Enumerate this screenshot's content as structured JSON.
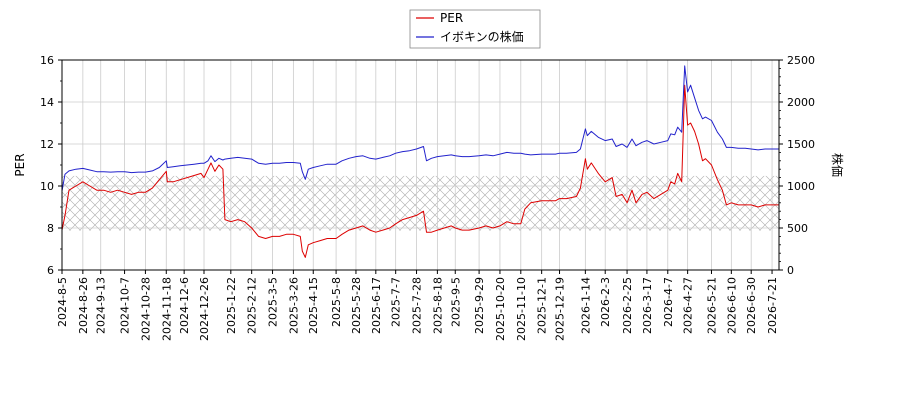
{
  "chart_data": {
    "type": "line",
    "title": "",
    "legend_position": "top-center",
    "left_axis": {
      "label": "PER",
      "range": [
        6,
        16
      ],
      "ticks": [
        "6",
        "8",
        "10",
        "12",
        "14",
        "16"
      ]
    },
    "right_axis": {
      "label": "株価",
      "range": [
        0,
        2500
      ],
      "ticks": [
        "0",
        "500",
        "1000",
        "1500",
        "2000",
        "2500"
      ]
    },
    "x_start": "2024-08-05",
    "x_end": "2026-07-28",
    "x_tick_labels": [
      "2024-8-5",
      "2024-8-26",
      "2024-9-13",
      "2024-10-7",
      "2024-10-28",
      "2024-11-18",
      "2024-12-6",
      "2024-12-26",
      "2025-1-22",
      "2025-2-12",
      "2025-3-5",
      "2025-3-26",
      "2025-4-15",
      "2025-5-8",
      "2025-5-28",
      "2025-6-17",
      "2025-7-7",
      "2025-7-28",
      "2025-8-18",
      "2025-9-5",
      "2025-9-29",
      "2025-10-20",
      "2025-11-10",
      "2025-12-1",
      "2025-12-19",
      "2026-1-14",
      "2026-2-3",
      "2026-2-25",
      "2026-3-17",
      "2026-4-7",
      "2026-4-27",
      "2026-5-21",
      "2026-6-10",
      "2026-6-30",
      "2026-7-21"
    ],
    "hatched_band": {
      "axis": "right",
      "from": 470,
      "to": 1120
    },
    "grid": true,
    "series": [
      {
        "name": "PER",
        "axis": "left",
        "color": "#dd0000",
        "points": [
          [
            "2024-08-05",
            7.9
          ],
          [
            "2024-08-08",
            8.6
          ],
          [
            "2024-08-12",
            9.8
          ],
          [
            "2024-08-19",
            10.0
          ],
          [
            "2024-08-26",
            10.2
          ],
          [
            "2024-09-02",
            10.0
          ],
          [
            "2024-09-09",
            9.8
          ],
          [
            "2024-09-16",
            9.8
          ],
          [
            "2024-09-23",
            9.7
          ],
          [
            "2024-09-30",
            9.8
          ],
          [
            "2024-10-07",
            9.7
          ],
          [
            "2024-10-14",
            9.6
          ],
          [
            "2024-10-21",
            9.7
          ],
          [
            "2024-10-28",
            9.7
          ],
          [
            "2024-11-04",
            9.9
          ],
          [
            "2024-11-11",
            10.3
          ],
          [
            "2024-11-18",
            10.7
          ],
          [
            "2024-11-19",
            10.2
          ],
          [
            "2024-11-25",
            10.2
          ],
          [
            "2024-12-02",
            10.3
          ],
          [
            "2024-12-09",
            10.4
          ],
          [
            "2024-12-16",
            10.5
          ],
          [
            "2024-12-23",
            10.6
          ],
          [
            "2024-12-26",
            10.4
          ],
          [
            "2024-12-30",
            10.8
          ],
          [
            "2025-01-02",
            11.1
          ],
          [
            "2025-01-06",
            10.7
          ],
          [
            "2025-01-10",
            11.0
          ],
          [
            "2025-01-14",
            10.8
          ],
          [
            "2025-01-16",
            8.4
          ],
          [
            "2025-01-22",
            8.3
          ],
          [
            "2025-01-29",
            8.4
          ],
          [
            "2025-02-05",
            8.3
          ],
          [
            "2025-02-12",
            8.0
          ],
          [
            "2025-02-19",
            7.6
          ],
          [
            "2025-02-26",
            7.5
          ],
          [
            "2025-03-05",
            7.6
          ],
          [
            "2025-03-12",
            7.6
          ],
          [
            "2025-03-19",
            7.7
          ],
          [
            "2025-03-26",
            7.7
          ],
          [
            "2025-04-02",
            7.6
          ],
          [
            "2025-04-04",
            6.9
          ],
          [
            "2025-04-07",
            6.6
          ],
          [
            "2025-04-10",
            7.2
          ],
          [
            "2025-04-15",
            7.3
          ],
          [
            "2025-04-22",
            7.4
          ],
          [
            "2025-04-29",
            7.5
          ],
          [
            "2025-05-08",
            7.5
          ],
          [
            "2025-05-14",
            7.7
          ],
          [
            "2025-05-21",
            7.9
          ],
          [
            "2025-05-28",
            8.0
          ],
          [
            "2025-06-04",
            8.1
          ],
          [
            "2025-06-11",
            7.9
          ],
          [
            "2025-06-17",
            7.8
          ],
          [
            "2025-06-24",
            7.9
          ],
          [
            "2025-07-01",
            8.0
          ],
          [
            "2025-07-07",
            8.2
          ],
          [
            "2025-07-14",
            8.4
          ],
          [
            "2025-07-21",
            8.5
          ],
          [
            "2025-07-28",
            8.6
          ],
          [
            "2025-08-04",
            8.8
          ],
          [
            "2025-08-07",
            7.8
          ],
          [
            "2025-08-12",
            7.8
          ],
          [
            "2025-08-18",
            7.9
          ],
          [
            "2025-08-25",
            8.0
          ],
          [
            "2025-09-01",
            8.1
          ],
          [
            "2025-09-05",
            8.0
          ],
          [
            "2025-09-12",
            7.9
          ],
          [
            "2025-09-19",
            7.9
          ],
          [
            "2025-09-29",
            8.0
          ],
          [
            "2025-10-06",
            8.1
          ],
          [
            "2025-10-13",
            8.0
          ],
          [
            "2025-10-20",
            8.1
          ],
          [
            "2025-10-27",
            8.3
          ],
          [
            "2025-11-03",
            8.2
          ],
          [
            "2025-11-10",
            8.2
          ],
          [
            "2025-11-14",
            8.9
          ],
          [
            "2025-11-20",
            9.2
          ],
          [
            "2025-12-01",
            9.3
          ],
          [
            "2025-12-08",
            9.3
          ],
          [
            "2025-12-15",
            9.3
          ],
          [
            "2025-12-19",
            9.4
          ],
          [
            "2025-12-26",
            9.4
          ],
          [
            "2026-01-05",
            9.5
          ],
          [
            "2026-01-09",
            9.9
          ],
          [
            "2026-01-14",
            11.3
          ],
          [
            "2026-01-16",
            10.8
          ],
          [
            "2026-01-20",
            11.1
          ],
          [
            "2026-01-27",
            10.6
          ],
          [
            "2026-02-03",
            10.2
          ],
          [
            "2026-02-10",
            10.4
          ],
          [
            "2026-02-14",
            9.5
          ],
          [
            "2026-02-20",
            9.6
          ],
          [
            "2026-02-25",
            9.2
          ],
          [
            "2026-03-02",
            9.8
          ],
          [
            "2026-03-06",
            9.2
          ],
          [
            "2026-03-12",
            9.6
          ],
          [
            "2026-03-17",
            9.7
          ],
          [
            "2026-03-24",
            9.4
          ],
          [
            "2026-03-31",
            9.6
          ],
          [
            "2026-04-07",
            9.8
          ],
          [
            "2026-04-10",
            10.2
          ],
          [
            "2026-04-14",
            10.1
          ],
          [
            "2026-04-17",
            10.6
          ],
          [
            "2026-04-21",
            10.2
          ],
          [
            "2026-04-24",
            14.8
          ],
          [
            "2026-04-27",
            12.9
          ],
          [
            "2026-04-30",
            13.0
          ],
          [
            "2026-05-04",
            12.6
          ],
          [
            "2026-05-08",
            12.0
          ],
          [
            "2026-05-12",
            11.2
          ],
          [
            "2026-05-15",
            11.3
          ],
          [
            "2026-05-21",
            11.0
          ],
          [
            "2026-05-27",
            10.3
          ],
          [
            "2026-06-01",
            9.8
          ],
          [
            "2026-06-05",
            9.1
          ],
          [
            "2026-06-10",
            9.2
          ],
          [
            "2026-06-17",
            9.1
          ],
          [
            "2026-06-24",
            9.1
          ],
          [
            "2026-06-30",
            9.1
          ],
          [
            "2026-07-07",
            9.0
          ],
          [
            "2026-07-14",
            9.1
          ],
          [
            "2026-07-21",
            9.1
          ],
          [
            "2026-07-28",
            9.1
          ]
        ]
      },
      {
        "name": "イボキンの株価",
        "axis": "right",
        "color": "#2222cc",
        "points": [
          [
            "2024-08-05",
            940
          ],
          [
            "2024-08-08",
            1140
          ],
          [
            "2024-08-12",
            1180
          ],
          [
            "2024-08-19",
            1200
          ],
          [
            "2024-08-26",
            1210
          ],
          [
            "2024-09-02",
            1190
          ],
          [
            "2024-09-09",
            1170
          ],
          [
            "2024-09-16",
            1170
          ],
          [
            "2024-09-23",
            1165
          ],
          [
            "2024-09-30",
            1170
          ],
          [
            "2024-10-07",
            1170
          ],
          [
            "2024-10-14",
            1160
          ],
          [
            "2024-10-21",
            1165
          ],
          [
            "2024-10-28",
            1165
          ],
          [
            "2024-11-04",
            1180
          ],
          [
            "2024-11-11",
            1220
          ],
          [
            "2024-11-18",
            1300
          ],
          [
            "2024-11-19",
            1220
          ],
          [
            "2024-11-25",
            1230
          ],
          [
            "2024-12-02",
            1240
          ],
          [
            "2024-12-09",
            1250
          ],
          [
            "2024-12-16",
            1260
          ],
          [
            "2024-12-23",
            1270
          ],
          [
            "2024-12-26",
            1270
          ],
          [
            "2024-12-30",
            1300
          ],
          [
            "2025-01-02",
            1360
          ],
          [
            "2025-01-06",
            1290
          ],
          [
            "2025-01-10",
            1330
          ],
          [
            "2025-01-14",
            1310
          ],
          [
            "2025-01-16",
            1320
          ],
          [
            "2025-01-22",
            1330
          ],
          [
            "2025-01-29",
            1340
          ],
          [
            "2025-02-05",
            1330
          ],
          [
            "2025-02-12",
            1320
          ],
          [
            "2025-02-19",
            1270
          ],
          [
            "2025-02-26",
            1260
          ],
          [
            "2025-03-05",
            1270
          ],
          [
            "2025-03-12",
            1270
          ],
          [
            "2025-03-19",
            1280
          ],
          [
            "2025-03-26",
            1280
          ],
          [
            "2025-04-02",
            1270
          ],
          [
            "2025-04-04",
            1170
          ],
          [
            "2025-04-07",
            1080
          ],
          [
            "2025-04-10",
            1200
          ],
          [
            "2025-04-15",
            1220
          ],
          [
            "2025-04-22",
            1240
          ],
          [
            "2025-04-29",
            1260
          ],
          [
            "2025-05-08",
            1260
          ],
          [
            "2025-05-14",
            1300
          ],
          [
            "2025-05-21",
            1330
          ],
          [
            "2025-05-28",
            1350
          ],
          [
            "2025-06-04",
            1360
          ],
          [
            "2025-06-11",
            1330
          ],
          [
            "2025-06-17",
            1320
          ],
          [
            "2025-06-24",
            1340
          ],
          [
            "2025-07-01",
            1360
          ],
          [
            "2025-07-07",
            1390
          ],
          [
            "2025-07-14",
            1410
          ],
          [
            "2025-07-21",
            1420
          ],
          [
            "2025-07-28",
            1440
          ],
          [
            "2025-08-04",
            1470
          ],
          [
            "2025-08-07",
            1300
          ],
          [
            "2025-08-12",
            1330
          ],
          [
            "2025-08-18",
            1350
          ],
          [
            "2025-08-25",
            1360
          ],
          [
            "2025-09-01",
            1370
          ],
          [
            "2025-09-05",
            1360
          ],
          [
            "2025-09-12",
            1350
          ],
          [
            "2025-09-19",
            1350
          ],
          [
            "2025-09-29",
            1360
          ],
          [
            "2025-10-06",
            1370
          ],
          [
            "2025-10-13",
            1360
          ],
          [
            "2025-10-20",
            1380
          ],
          [
            "2025-10-27",
            1400
          ],
          [
            "2025-11-03",
            1390
          ],
          [
            "2025-11-10",
            1390
          ],
          [
            "2025-11-14",
            1380
          ],
          [
            "2025-11-20",
            1370
          ],
          [
            "2025-12-01",
            1380
          ],
          [
            "2025-12-08",
            1380
          ],
          [
            "2025-12-15",
            1380
          ],
          [
            "2025-12-19",
            1390
          ],
          [
            "2025-12-26",
            1390
          ],
          [
            "2026-01-05",
            1400
          ],
          [
            "2026-01-09",
            1440
          ],
          [
            "2026-01-14",
            1680
          ],
          [
            "2026-01-16",
            1600
          ],
          [
            "2026-01-20",
            1650
          ],
          [
            "2026-01-27",
            1580
          ],
          [
            "2026-02-03",
            1540
          ],
          [
            "2026-02-10",
            1560
          ],
          [
            "2026-02-14",
            1470
          ],
          [
            "2026-02-20",
            1500
          ],
          [
            "2026-02-25",
            1460
          ],
          [
            "2026-03-02",
            1560
          ],
          [
            "2026-03-06",
            1480
          ],
          [
            "2026-03-12",
            1520
          ],
          [
            "2026-03-17",
            1540
          ],
          [
            "2026-03-24",
            1500
          ],
          [
            "2026-03-31",
            1520
          ],
          [
            "2026-04-07",
            1540
          ],
          [
            "2026-04-10",
            1620
          ],
          [
            "2026-04-14",
            1610
          ],
          [
            "2026-04-17",
            1700
          ],
          [
            "2026-04-21",
            1640
          ],
          [
            "2026-04-24",
            2430
          ],
          [
            "2026-04-27",
            2120
          ],
          [
            "2026-04-30",
            2200
          ],
          [
            "2026-05-04",
            2050
          ],
          [
            "2026-05-08",
            1900
          ],
          [
            "2026-05-12",
            1800
          ],
          [
            "2026-05-15",
            1820
          ],
          [
            "2026-05-21",
            1780
          ],
          [
            "2026-05-27",
            1640
          ],
          [
            "2026-06-01",
            1560
          ],
          [
            "2026-06-05",
            1460
          ],
          [
            "2026-06-10",
            1460
          ],
          [
            "2026-06-17",
            1450
          ],
          [
            "2026-06-24",
            1450
          ],
          [
            "2026-06-30",
            1440
          ],
          [
            "2026-07-07",
            1430
          ],
          [
            "2026-07-14",
            1440
          ],
          [
            "2026-07-21",
            1440
          ],
          [
            "2026-07-28",
            1440
          ]
        ]
      }
    ]
  }
}
